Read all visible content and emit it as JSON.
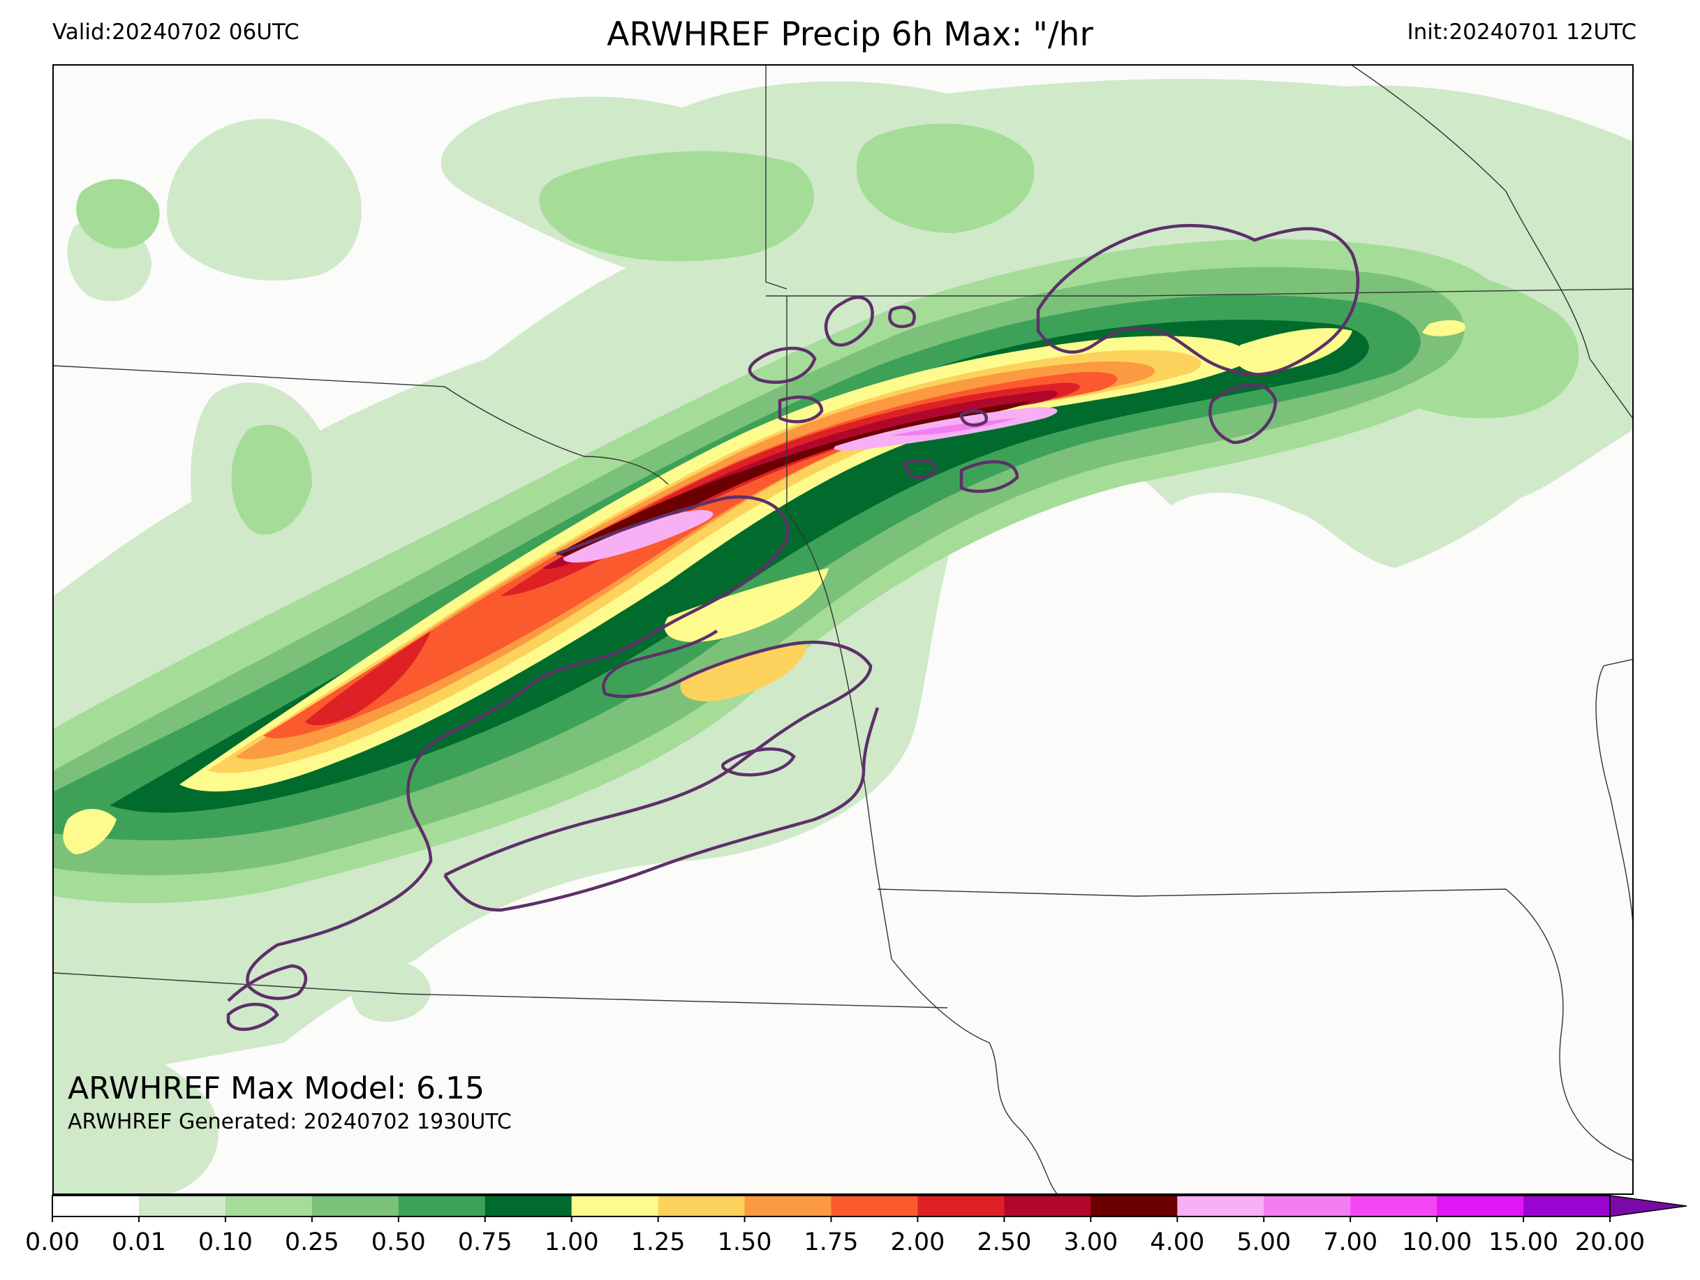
{
  "header": {
    "valid": "Valid:20240702 06UTC",
    "title": "ARWHREF Precip 6h Max: \"/hr",
    "init": "Init:20240701 12UTC"
  },
  "map": {
    "max_model": "ARWHREF Max Model: 6.15",
    "generated": "ARWHREF Generated: 20240702 1930UTC",
    "field": "6h max precipitation rate",
    "contour_color": "#5e2f69",
    "background_color": "#fbfbfa"
  },
  "colorbar": {
    "ticks": [
      "0.00",
      "0.01",
      "0.10",
      "0.25",
      "0.50",
      "0.75",
      "1.00",
      "1.25",
      "1.50",
      "1.75",
      "2.00",
      "2.50",
      "3.00",
      "4.00",
      "5.00",
      "7.00",
      "10.00",
      "15.00",
      "20.00"
    ],
    "colors": [
      "#ffffff",
      "#cfe9c9",
      "#a4dc98",
      "#7bc17a",
      "#3da258",
      "#006b2d",
      "#fdfb8e",
      "#fdd25c",
      "#fc9a41",
      "#fb5a2f",
      "#de2124",
      "#b0082d",
      "#6b0000",
      "#f7b0f3",
      "#f27ef1",
      "#f447f4",
      "#e117f5",
      "#9a06d0"
    ],
    "extend_color": "#7a0aa8"
  }
}
